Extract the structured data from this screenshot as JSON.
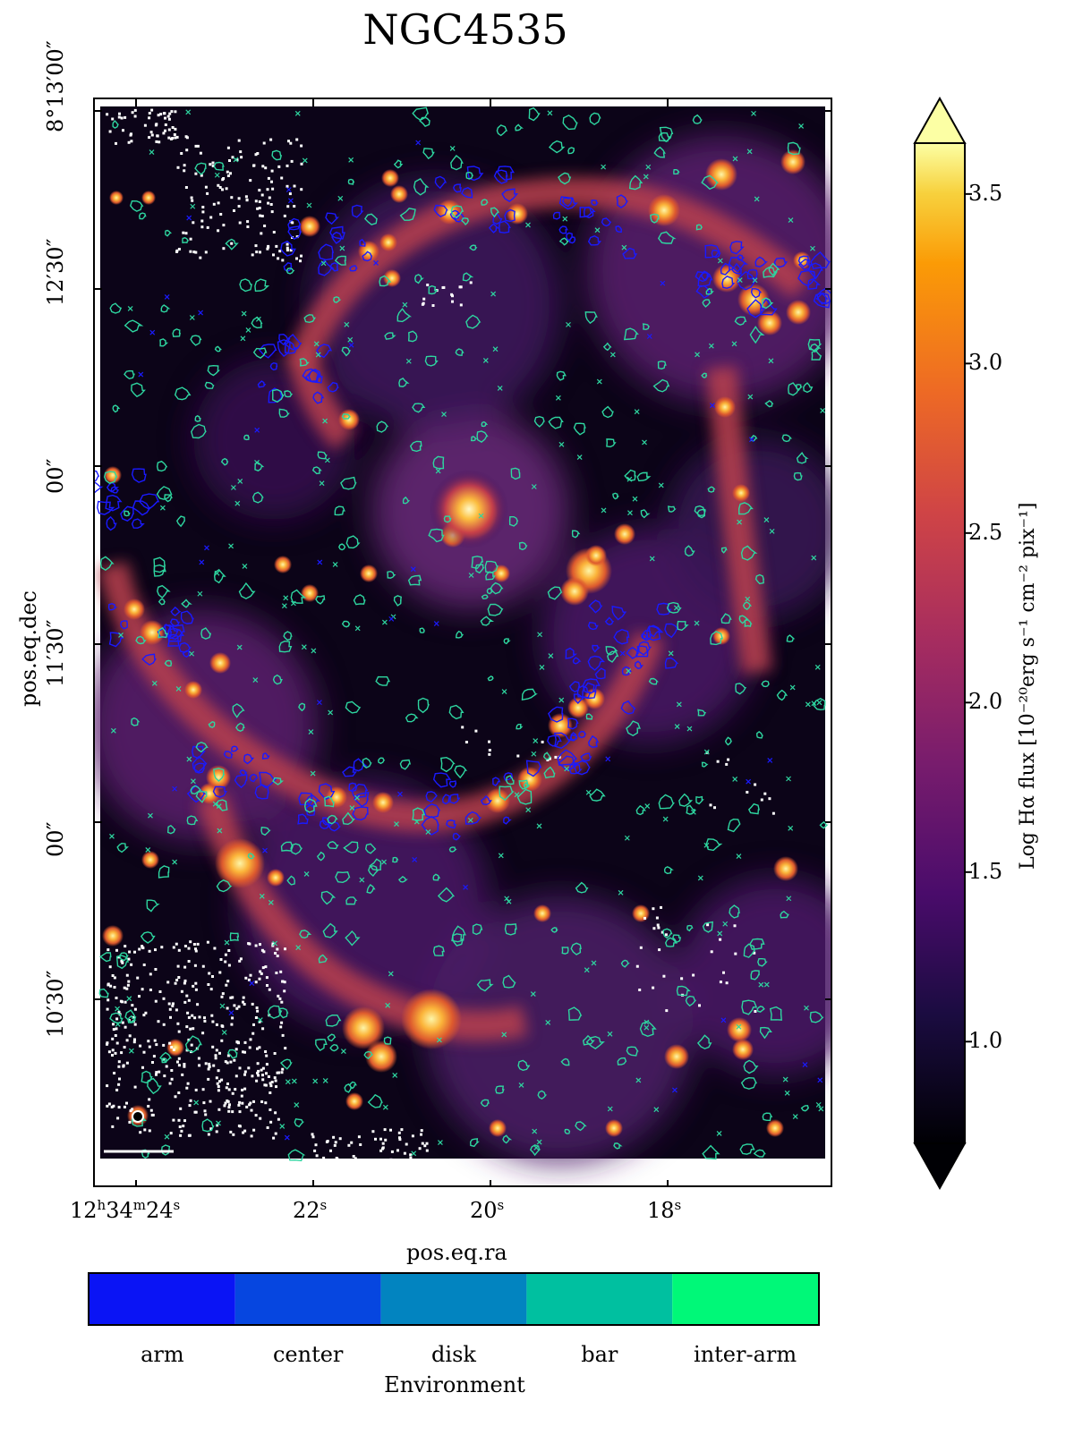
{
  "title": "NGC4535",
  "image": {
    "colormap": "inferno",
    "colorbar": {
      "label": "Log Hα flux [10⁻²⁰erg s⁻¹ cm⁻² pix⁻¹]",
      "ticks": [
        "1.0",
        "1.5",
        "2.0",
        "2.5",
        "3.0",
        "3.5"
      ],
      "range": [
        0.7,
        3.65
      ],
      "extend": "both"
    }
  },
  "axes": {
    "xlabel": "pos.eq.ra",
    "ylabel": "pos.eq.dec",
    "ra_ticks": [
      {
        "h": "12",
        "m": "34",
        "s": "24"
      },
      {
        "s": "22"
      },
      {
        "s": "20"
      },
      {
        "s": "18"
      }
    ],
    "dec_ticks": [
      "8°13′00″",
      "12′30″",
      "00″",
      "11′30″",
      "00″",
      "10′30″"
    ]
  },
  "environment_legend": {
    "title": "Environment",
    "categories": [
      {
        "label": "arm",
        "color": "#0a14f5"
      },
      {
        "label": "center",
        "color": "#0646e0"
      },
      {
        "label": "disk",
        "color": "#0284c0"
      },
      {
        "label": "bar",
        "color": "#00c0a0"
      },
      {
        "label": "inter-arm",
        "color": "#00f878"
      }
    ]
  },
  "colors": {
    "arm_contour": "#1a1aff",
    "interarm_contour": "#2ed6a0",
    "background": "#0c0418"
  }
}
